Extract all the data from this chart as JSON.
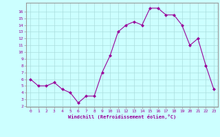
{
  "x": [
    0,
    1,
    2,
    3,
    4,
    5,
    6,
    7,
    8,
    9,
    10,
    11,
    12,
    13,
    14,
    15,
    16,
    17,
    18,
    19,
    20,
    21,
    22,
    23
  ],
  "y": [
    6,
    5,
    5,
    5.5,
    4.5,
    4,
    2.5,
    3.5,
    3.5,
    7,
    9.5,
    13,
    14,
    14.5,
    14,
    16.5,
    16.5,
    15.5,
    15.5,
    14,
    11,
    12,
    8,
    4.5
  ],
  "line_color": "#990099",
  "bg_color": "#ccffff",
  "grid_color": "#aadddd",
  "xlabel": "Windchill (Refroidissement éolien,°C)",
  "xlabel_color": "#990099",
  "tick_color": "#990099",
  "spine_color": "#999999",
  "ylim": [
    2,
    17
  ],
  "xlim": [
    -0.5,
    23.5
  ],
  "yticks": [
    2,
    3,
    4,
    5,
    6,
    7,
    8,
    9,
    10,
    11,
    12,
    13,
    14,
    15,
    16
  ],
  "xticks": [
    0,
    1,
    2,
    3,
    4,
    5,
    6,
    7,
    8,
    9,
    10,
    11,
    12,
    13,
    14,
    15,
    16,
    17,
    18,
    19,
    20,
    21,
    22,
    23
  ]
}
